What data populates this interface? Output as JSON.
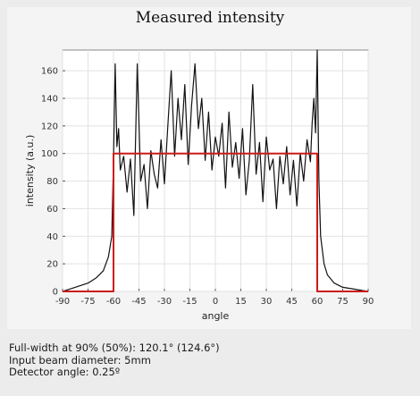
{
  "chart_data": {
    "type": "line",
    "title": "Measured intensity",
    "xlabel": "angle",
    "ylabel": "intensity (a.u.)",
    "xlim": [
      -90,
      90
    ],
    "ylim": [
      0,
      175
    ],
    "xticks": [
      -90,
      -75,
      -60,
      -45,
      -30,
      -15,
      0,
      15,
      30,
      45,
      60,
      75,
      90
    ],
    "yticks": [
      0,
      20,
      40,
      60,
      80,
      100,
      120,
      140,
      160
    ],
    "grid": true,
    "legend": "none",
    "series": [
      {
        "color": "#111111",
        "x": [
          -90,
          -85,
          -80,
          -75,
          -70,
          -66,
          -63,
          -61,
          -60,
          -59,
          -58,
          -57,
          -56,
          -54,
          -52,
          -50,
          -48,
          -46,
          -44,
          -42,
          -40,
          -38,
          -36,
          -34,
          -32,
          -30,
          -28,
          -26,
          -24,
          -22,
          -20,
          -18,
          -16,
          -14,
          -12,
          -10,
          -8,
          -6,
          -4,
          -2,
          0,
          2,
          4,
          6,
          8,
          10,
          12,
          14,
          16,
          18,
          20,
          22,
          24,
          26,
          28,
          30,
          32,
          34,
          36,
          38,
          40,
          42,
          44,
          46,
          48,
          50,
          52,
          54,
          56,
          57,
          58,
          59,
          60,
          61,
          62,
          64,
          66,
          70,
          75,
          80,
          85,
          90
        ],
        "y": [
          0,
          2,
          4,
          6,
          10,
          15,
          25,
          40,
          95,
          165,
          105,
          118,
          88,
          98,
          72,
          96,
          55,
          165,
          80,
          92,
          60,
          102,
          85,
          75,
          110,
          78,
          120,
          160,
          98,
          140,
          110,
          150,
          92,
          135,
          165,
          118,
          140,
          95,
          130,
          88,
          112,
          98,
          122,
          75,
          130,
          90,
          108,
          82,
          118,
          70,
          95,
          150,
          85,
          108,
          65,
          112,
          88,
          96,
          60,
          98,
          78,
          105,
          70,
          95,
          62,
          100,
          80,
          110,
          94,
          122,
          140,
          115,
          175,
          80,
          40,
          20,
          12,
          6,
          3,
          2,
          1,
          0
        ]
      },
      {
        "color": "#cc1a1a",
        "x": [
          -90,
          -60,
          -60,
          60,
          60,
          90
        ],
        "y": [
          0,
          0,
          100,
          100,
          0,
          0
        ]
      }
    ]
  },
  "info": {
    "line1": "Full-width at 90% (50%): 120.1° (124.6°)",
    "line2": "Input beam diameter: 5mm",
    "line3": "Detector angle: 0.25º"
  }
}
